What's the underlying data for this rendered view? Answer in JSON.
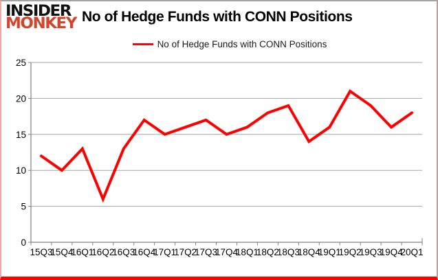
{
  "logo": {
    "line1": "INSIDER",
    "line2": "MONKEY",
    "color_line1": "#111111",
    "color_line2": "#d0452c"
  },
  "header": {
    "title": "No of Hedge Funds with CONN Positions"
  },
  "legend": {
    "label": "No of Hedge Funds with CONN Positions",
    "marker": "red-line"
  },
  "chart_data": {
    "type": "line",
    "title": "No of Hedge Funds with CONN Positions",
    "series_name": "No of Hedge Funds with CONN Positions",
    "categories": [
      "15Q3",
      "15Q4",
      "16Q1",
      "16Q2",
      "16Q3",
      "16Q4",
      "17Q1",
      "17Q2",
      "17Q3",
      "17Q4",
      "18Q1",
      "18Q2",
      "18Q3",
      "18Q4",
      "19Q1",
      "19Q2",
      "19Q3",
      "19Q4",
      "20Q1"
    ],
    "values": [
      12,
      10,
      13,
      6,
      13,
      17,
      15,
      16,
      17,
      15,
      16,
      18,
      19,
      14,
      16,
      21,
      19,
      16,
      18
    ],
    "xlabel": "",
    "ylabel": "",
    "ylim": [
      0,
      25
    ],
    "ytick_step": 5,
    "yticks": [
      0,
      5,
      10,
      15,
      20,
      25
    ],
    "grid": true,
    "legend_position": "top",
    "line_color": "#fe0000",
    "grid_color": "#a6a6a6",
    "axis_color": "#808080"
  }
}
